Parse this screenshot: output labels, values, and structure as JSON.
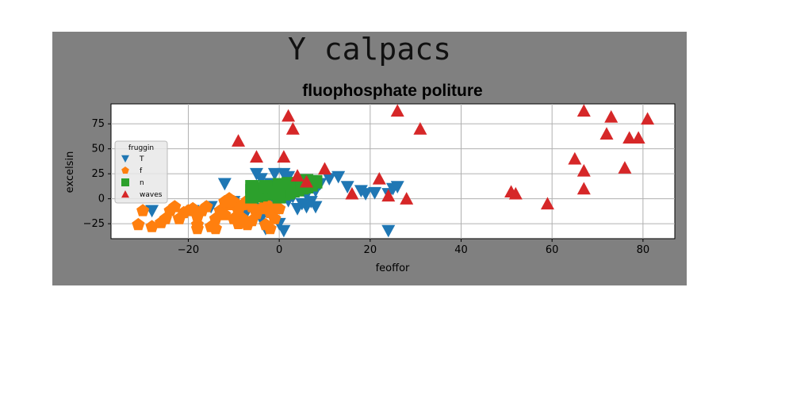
{
  "figure_title": "Y calpacs",
  "chart_data": {
    "type": "scatter",
    "title": "fluophosphate politure",
    "xlabel": "feoffor",
    "ylabel": "excelsin",
    "xlim": [
      -37,
      87
    ],
    "ylim": [
      -40,
      95
    ],
    "xticks": [
      -20,
      0,
      20,
      40,
      60,
      80
    ],
    "xtick_labels": [
      "−20",
      "0",
      "20",
      "40",
      "60",
      "80"
    ],
    "yticks": [
      -25,
      0,
      25,
      50,
      75
    ],
    "ytick_labels": [
      "−25",
      "0",
      "25",
      "50",
      "75"
    ],
    "grid": true,
    "legend": {
      "title": "fruggin",
      "placement": "center-left"
    },
    "series": [
      {
        "name": "T",
        "marker": "triangle-down",
        "color": "#1f77b4",
        "points": [
          [
            -28,
            -12
          ],
          [
            -19,
            -12
          ],
          [
            -15,
            -8
          ],
          [
            -13,
            -15
          ],
          [
            -10,
            -3
          ],
          [
            -8,
            -15
          ],
          [
            -7,
            -12
          ],
          [
            -12,
            15
          ],
          [
            -5,
            -10
          ],
          [
            -3,
            -12
          ],
          [
            -2,
            -5
          ],
          [
            -4,
            -20
          ],
          [
            -3,
            -30
          ],
          [
            0,
            -25
          ],
          [
            1,
            -32
          ],
          [
            -5,
            25
          ],
          [
            -4,
            20
          ],
          [
            -2,
            15
          ],
          [
            0,
            15
          ],
          [
            1,
            25
          ],
          [
            2,
            22
          ],
          [
            3,
            10
          ],
          [
            4,
            12
          ],
          [
            4,
            -10
          ],
          [
            5,
            -5
          ],
          [
            6,
            -8
          ],
          [
            7,
            -3
          ],
          [
            8,
            -8
          ],
          [
            9,
            15
          ],
          [
            -2,
            5
          ],
          [
            0,
            3
          ],
          [
            2,
            -2
          ],
          [
            3,
            2
          ],
          [
            6,
            4
          ],
          [
            8,
            8
          ],
          [
            13,
            22
          ],
          [
            15,
            12
          ],
          [
            18,
            8
          ],
          [
            19,
            5
          ],
          [
            21,
            6
          ],
          [
            24,
            5
          ],
          [
            25,
            10
          ],
          [
            26,
            12
          ],
          [
            24,
            -32
          ],
          [
            -1,
            25
          ],
          [
            7,
            18
          ],
          [
            11,
            20
          ]
        ]
      },
      {
        "name": "f",
        "marker": "pentagon",
        "color": "#ff7f0e",
        "points": [
          [
            -30,
            -12
          ],
          [
            -31,
            -26
          ],
          [
            -28,
            -28
          ],
          [
            -25,
            -20
          ],
          [
            -24,
            -12
          ],
          [
            -23,
            -8
          ],
          [
            -21,
            -14
          ],
          [
            -19,
            -10
          ],
          [
            -18,
            -18
          ],
          [
            -17,
            -12
          ],
          [
            -16,
            -8
          ],
          [
            -18,
            -26
          ],
          [
            -15,
            -28
          ],
          [
            -14,
            -20
          ],
          [
            -13,
            -12
          ],
          [
            -12,
            -16
          ],
          [
            -11,
            -6
          ],
          [
            -10,
            -3
          ],
          [
            -9,
            -12
          ],
          [
            -8,
            -20
          ],
          [
            -8,
            -6
          ],
          [
            -7,
            -2
          ],
          [
            -6,
            -8
          ],
          [
            -7,
            -26
          ],
          [
            -6,
            -22
          ],
          [
            -5,
            -15
          ],
          [
            -4,
            -10
          ],
          [
            -3,
            -5
          ],
          [
            -2,
            -14
          ],
          [
            -2,
            -10
          ],
          [
            -1,
            -8
          ],
          [
            0,
            -10
          ],
          [
            -3,
            -26
          ],
          [
            -1,
            -20
          ],
          [
            -12,
            -3
          ],
          [
            -11,
            0
          ],
          [
            -20,
            -12
          ],
          [
            -18,
            -30
          ],
          [
            -14,
            -30
          ],
          [
            -22,
            -20
          ],
          [
            -26,
            -24
          ],
          [
            -10,
            -20
          ],
          [
            -2,
            -30
          ],
          [
            -9,
            -25
          ]
        ]
      },
      {
        "name": "n",
        "marker": "square",
        "color": "#2ca02c",
        "points": [
          [
            -6,
            8
          ],
          [
            -5,
            6
          ],
          [
            -4,
            10
          ],
          [
            -3,
            7
          ],
          [
            -2,
            9
          ],
          [
            -1,
            11
          ],
          [
            0,
            8
          ],
          [
            1,
            12
          ],
          [
            2,
            10
          ],
          [
            3,
            13
          ],
          [
            4,
            15
          ],
          [
            5,
            16
          ],
          [
            6,
            18
          ],
          [
            -6,
            12
          ],
          [
            -4,
            4
          ],
          [
            -2,
            5
          ],
          [
            0,
            14
          ],
          [
            2,
            6
          ],
          [
            4,
            9
          ],
          [
            -5,
            3
          ],
          [
            -3,
            12
          ],
          [
            -1,
            6
          ],
          [
            1,
            5
          ],
          [
            3,
            8
          ],
          [
            5,
            11
          ],
          [
            7,
            14
          ],
          [
            -6,
            2
          ],
          [
            0,
            2
          ],
          [
            2,
            15
          ],
          [
            6,
            12
          ],
          [
            8,
            17
          ]
        ]
      },
      {
        "name": "waves",
        "marker": "triangle-up",
        "color": "#d62728",
        "points": [
          [
            -9,
            58
          ],
          [
            -5,
            42
          ],
          [
            1,
            42
          ],
          [
            2,
            83
          ],
          [
            3,
            70
          ],
          [
            4,
            23
          ],
          [
            6,
            17
          ],
          [
            10,
            30
          ],
          [
            16,
            5
          ],
          [
            22,
            20
          ],
          [
            24,
            3
          ],
          [
            26,
            88
          ],
          [
            28,
            0
          ],
          [
            31,
            70
          ],
          [
            51,
            7
          ],
          [
            52,
            5
          ],
          [
            59,
            -5
          ],
          [
            65,
            40
          ],
          [
            67,
            88
          ],
          [
            67,
            28
          ],
          [
            67,
            10
          ],
          [
            72,
            65
          ],
          [
            73,
            82
          ],
          [
            76,
            31
          ],
          [
            77,
            61
          ],
          [
            79,
            61
          ],
          [
            81,
            80
          ]
        ]
      }
    ]
  }
}
